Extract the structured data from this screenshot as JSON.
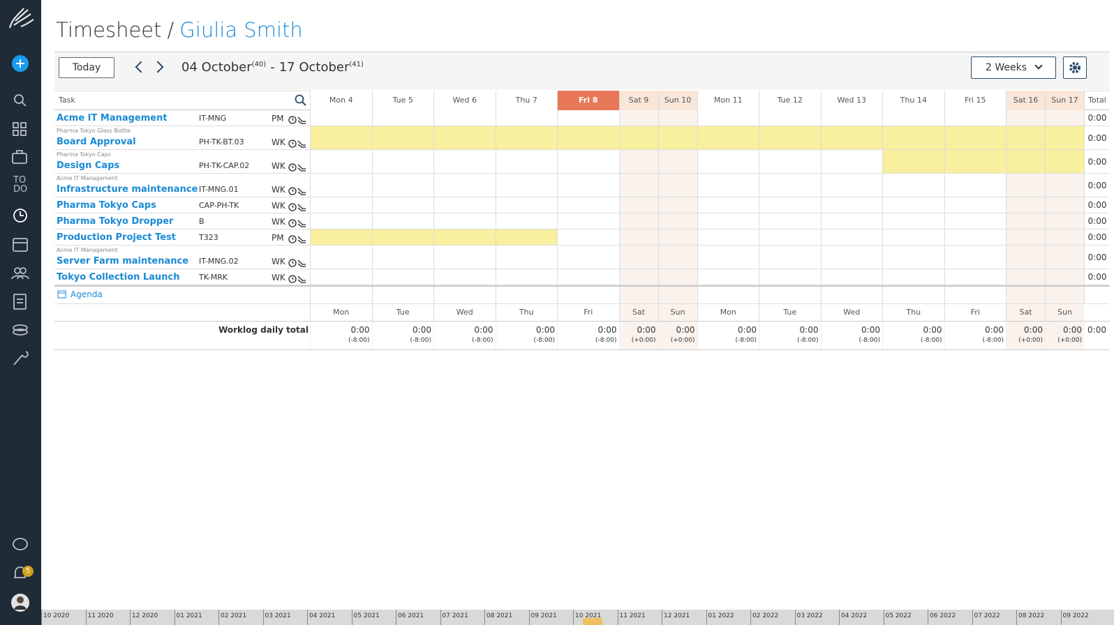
{
  "header": {
    "title": "Timesheet",
    "separator": "/",
    "user": "Giulia Smith"
  },
  "toolbar": {
    "today": "Today",
    "range_start": "04 October",
    "week_start": "(40)",
    "dash": "-",
    "range_end": "17 October",
    "week_end": "(41)",
    "period": "2 Weeks"
  },
  "sidebar": {
    "todo": [
      "TO",
      "DO"
    ],
    "badge": 5
  },
  "grid": {
    "task_header": "Task",
    "total_header": "Total",
    "days": [
      {
        "label": "Mon 4",
        "short": "Mon",
        "weekend": false,
        "today": false
      },
      {
        "label": "Tue 5",
        "short": "Tue",
        "weekend": false,
        "today": false
      },
      {
        "label": "Wed 6",
        "short": "Wed",
        "weekend": false,
        "today": false
      },
      {
        "label": "Thu 7",
        "short": "Thu",
        "weekend": false,
        "today": false
      },
      {
        "label": "Fri 8",
        "short": "Fri",
        "weekend": false,
        "today": true
      },
      {
        "label": "Sat 9",
        "short": "Sat",
        "weekend": true,
        "today": false
      },
      {
        "label": "Sun 10",
        "short": "Sun",
        "weekend": true,
        "today": false
      },
      {
        "label": "Mon 11",
        "short": "Mon",
        "weekend": false,
        "today": false
      },
      {
        "label": "Tue 12",
        "short": "Tue",
        "weekend": false,
        "today": false
      },
      {
        "label": "Wed 13",
        "short": "Wed",
        "weekend": false,
        "today": false
      },
      {
        "label": "Thu 14",
        "short": "Thu",
        "weekend": false,
        "today": false
      },
      {
        "label": "Fri 15",
        "short": "Fri",
        "weekend": false,
        "today": false
      },
      {
        "label": "Sat 16",
        "short": "Sat",
        "weekend": true,
        "today": false
      },
      {
        "label": "Sun 17",
        "short": "Sun",
        "weekend": true,
        "today": false
      }
    ]
  },
  "tasks": [
    {
      "name": "Acme IT Management",
      "code": "IT-MNG",
      "kind": "PM",
      "total": "0:00"
    },
    {
      "parent": "Pharma Tokyo Glass Bottle",
      "name": "Board Approval",
      "code": "PH-TK-BT.03",
      "kind": "WK",
      "total": "0:00",
      "highlight": [
        0,
        13
      ]
    },
    {
      "parent": "Pharma Tokyo Caps",
      "name": "Design Caps",
      "code": "PH-TK-CAP.02",
      "kind": "WK",
      "total": "0:00",
      "highlight": [
        10,
        13
      ]
    },
    {
      "parent": "Acme IT Management",
      "name": "Infrastructure maintenance",
      "code": "IT-MNG.01",
      "kind": "WK",
      "total": "0:00"
    },
    {
      "name": "Pharma Tokyo Caps",
      "code": "CAP-PH-TK",
      "kind": "WK",
      "total": "0:00"
    },
    {
      "name": "Pharma Tokyo Dropper",
      "code": "B",
      "kind": "WK",
      "total": "0:00"
    },
    {
      "name": "Production Project Test",
      "code": "T323",
      "kind": "PM",
      "total": "0:00",
      "highlight": [
        0,
        3
      ]
    },
    {
      "parent": "Acme IT Management",
      "name": "Server Farm maintenance",
      "code": "IT-MNG.02",
      "kind": "WK",
      "total": "0:00"
    },
    {
      "name": "Tokyo Collection Launch",
      "code": "TK-MRK",
      "kind": "WK",
      "total": "0:00"
    }
  ],
  "agenda": "Agenda",
  "footer": {
    "label": "Worklog daily total",
    "grand_total": "0:00",
    "daily": [
      {
        "total": "0:00",
        "diff": "(-8:00)"
      },
      {
        "total": "0:00",
        "diff": "(-8:00)"
      },
      {
        "total": "0:00",
        "diff": "(-8:00)"
      },
      {
        "total": "0:00",
        "diff": "(-8:00)"
      },
      {
        "total": "0:00",
        "diff": "(-8:00)"
      },
      {
        "total": "0:00",
        "diff": "(+0:00)"
      },
      {
        "total": "0:00",
        "diff": "(+0:00)"
      },
      {
        "total": "0:00",
        "diff": "(-8:00)"
      },
      {
        "total": "0:00",
        "diff": "(-8:00)"
      },
      {
        "total": "0:00",
        "diff": "(-8:00)"
      },
      {
        "total": "0:00",
        "diff": "(-8:00)"
      },
      {
        "total": "0:00",
        "diff": "(-8:00)"
      },
      {
        "total": "0:00",
        "diff": "(+0:00)"
      },
      {
        "total": "0:00",
        "diff": "(+0:00)"
      }
    ]
  },
  "timeline": [
    "10 2020",
    "11 2020",
    "12 2020",
    "01 2021",
    "02 2021",
    "03 2021",
    "04 2021",
    "05 2021",
    "06 2021",
    "07 2021",
    "08 2021",
    "09 2021",
    "10 2021",
    "11 2021",
    "12 2021",
    "01 2022",
    "02 2022",
    "03 2022",
    "04 2022",
    "05 2022",
    "06 2022",
    "07 2022",
    "08 2022",
    "09 2022"
  ]
}
